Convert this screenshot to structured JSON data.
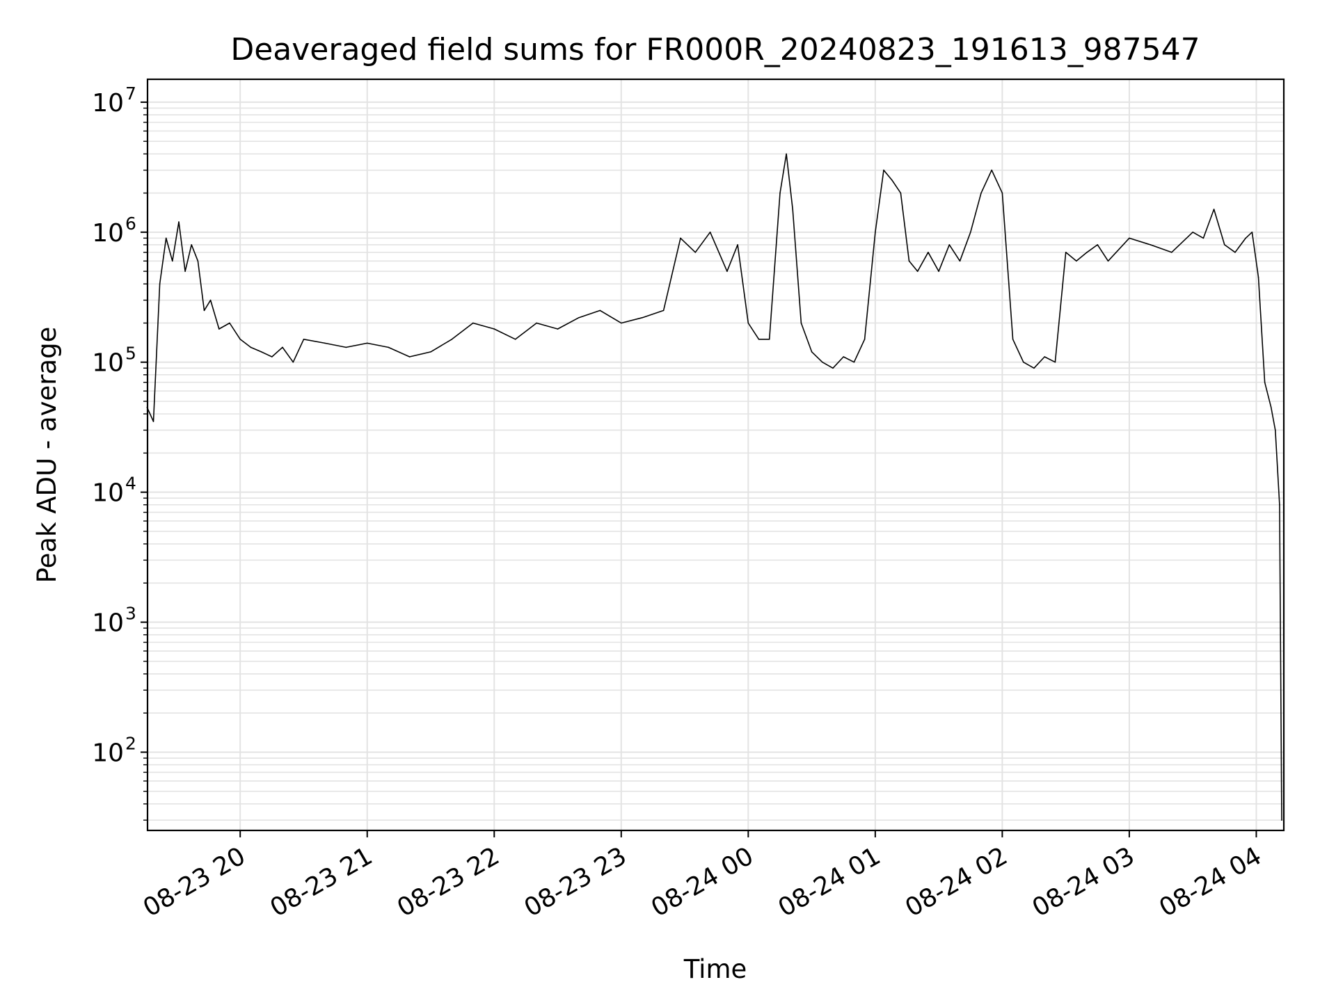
{
  "chart_data": {
    "type": "line",
    "title": "Deaveraged field sums for FR000R_20240823_191613_987547",
    "xlabel": "Time",
    "ylabel": "Peak ADU - average",
    "y_scale": "log",
    "ylim": [
      25,
      15000000
    ],
    "xlim": [
      "2024-08-23 19:16:13",
      "2024-08-24 04:13:00"
    ],
    "grid": true,
    "line_color": "#000000",
    "x_ticks": [
      {
        "t": "2024-08-23 20:00",
        "label": "08-23 20"
      },
      {
        "t": "2024-08-23 21:00",
        "label": "08-23 21"
      },
      {
        "t": "2024-08-23 22:00",
        "label": "08-23 22"
      },
      {
        "t": "2024-08-23 23:00",
        "label": "08-23 23"
      },
      {
        "t": "2024-08-24 00:00",
        "label": "08-24 00"
      },
      {
        "t": "2024-08-24 01:00",
        "label": "08-24 01"
      },
      {
        "t": "2024-08-24 02:00",
        "label": "08-24 02"
      },
      {
        "t": "2024-08-24 03:00",
        "label": "08-24 03"
      },
      {
        "t": "2024-08-24 04:00",
        "label": "08-24 04"
      }
    ],
    "y_ticks": [
      {
        "value": 100,
        "base": "10",
        "exp": "2"
      },
      {
        "value": 1000,
        "base": "10",
        "exp": "3"
      },
      {
        "value": 10000,
        "base": "10",
        "exp": "4"
      },
      {
        "value": 100000,
        "base": "10",
        "exp": "5"
      },
      {
        "value": 1000000,
        "base": "10",
        "exp": "6"
      },
      {
        "value": 10000000,
        "base": "10",
        "exp": "7"
      }
    ],
    "series": [
      {
        "x": [
          "2024-08-23 19:16",
          "2024-08-23 19:19",
          "2024-08-23 19:22",
          "2024-08-23 19:25",
          "2024-08-23 19:28",
          "2024-08-23 19:31",
          "2024-08-23 19:34",
          "2024-08-23 19:37",
          "2024-08-23 19:40",
          "2024-08-23 19:43",
          "2024-08-23 19:46",
          "2024-08-23 19:50",
          "2024-08-23 19:55",
          "2024-08-23 20:00",
          "2024-08-23 20:05",
          "2024-08-23 20:10",
          "2024-08-23 20:15",
          "2024-08-23 20:20",
          "2024-08-23 20:25",
          "2024-08-23 20:30",
          "2024-08-23 20:40",
          "2024-08-23 20:50",
          "2024-08-23 21:00",
          "2024-08-23 21:10",
          "2024-08-23 21:20",
          "2024-08-23 21:30",
          "2024-08-23 21:40",
          "2024-08-23 21:50",
          "2024-08-23 22:00",
          "2024-08-23 22:10",
          "2024-08-23 22:20",
          "2024-08-23 22:30",
          "2024-08-23 22:40",
          "2024-08-23 22:50",
          "2024-08-23 23:00",
          "2024-08-23 23:10",
          "2024-08-23 23:20",
          "2024-08-23 23:28",
          "2024-08-23 23:35",
          "2024-08-23 23:42",
          "2024-08-23 23:50",
          "2024-08-23 23:55",
          "2024-08-24 00:00",
          "2024-08-24 00:05",
          "2024-08-24 00:10",
          "2024-08-24 00:15",
          "2024-08-24 00:18",
          "2024-08-24 00:21",
          "2024-08-24 00:25",
          "2024-08-24 00:30",
          "2024-08-24 00:35",
          "2024-08-24 00:40",
          "2024-08-24 00:45",
          "2024-08-24 00:50",
          "2024-08-24 00:55",
          "2024-08-24 01:00",
          "2024-08-24 01:04",
          "2024-08-24 01:08",
          "2024-08-24 01:12",
          "2024-08-24 01:16",
          "2024-08-24 01:20",
          "2024-08-24 01:25",
          "2024-08-24 01:30",
          "2024-08-24 01:35",
          "2024-08-24 01:40",
          "2024-08-24 01:45",
          "2024-08-24 01:50",
          "2024-08-24 01:55",
          "2024-08-24 02:00",
          "2024-08-24 02:05",
          "2024-08-24 02:10",
          "2024-08-24 02:15",
          "2024-08-24 02:20",
          "2024-08-24 02:25",
          "2024-08-24 02:30",
          "2024-08-24 02:35",
          "2024-08-24 02:40",
          "2024-08-24 02:45",
          "2024-08-24 02:50",
          "2024-08-24 03:00",
          "2024-08-24 03:10",
          "2024-08-24 03:20",
          "2024-08-24 03:30",
          "2024-08-24 03:35",
          "2024-08-24 03:40",
          "2024-08-24 03:45",
          "2024-08-24 03:50",
          "2024-08-24 03:55",
          "2024-08-24 03:58",
          "2024-08-24 04:01",
          "2024-08-24 04:04",
          "2024-08-24 04:07",
          "2024-08-24 04:09",
          "2024-08-24 04:11",
          "2024-08-24 04:12"
        ],
        "y": [
          45000,
          35000,
          400000,
          900000,
          600000,
          1200000,
          500000,
          800000,
          600000,
          250000,
          300000,
          180000,
          200000,
          150000,
          130000,
          120000,
          110000,
          130000,
          100000,
          150000,
          140000,
          130000,
          140000,
          130000,
          110000,
          120000,
          150000,
          200000,
          180000,
          150000,
          200000,
          180000,
          220000,
          250000,
          200000,
          220000,
          250000,
          900000,
          700000,
          1000000,
          500000,
          800000,
          200000,
          150000,
          150000,
          2000000,
          4000000,
          1500000,
          200000,
          120000,
          100000,
          90000,
          110000,
          100000,
          150000,
          1000000,
          3000000,
          2500000,
          2000000,
          600000,
          500000,
          700000,
          500000,
          800000,
          600000,
          1000000,
          2000000,
          3000000,
          2000000,
          150000,
          100000,
          90000,
          110000,
          100000,
          700000,
          600000,
          700000,
          800000,
          600000,
          900000,
          800000,
          700000,
          1000000,
          900000,
          1500000,
          800000,
          700000,
          900000,
          1000000,
          450000,
          70000,
          45000,
          30000,
          8000,
          30
        ]
      }
    ]
  }
}
